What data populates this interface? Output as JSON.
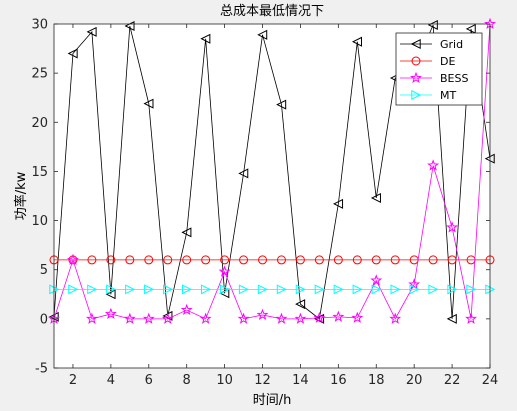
{
  "chart_data": {
    "type": "line",
    "title": "总成本最低情况下",
    "xlabel": "时间/h",
    "ylabel": "功率/kw",
    "xlim": [
      1,
      24
    ],
    "ylim": [
      -5,
      30
    ],
    "xticks": [
      2,
      4,
      6,
      8,
      10,
      12,
      14,
      16,
      18,
      20,
      22,
      24
    ],
    "yticks": [
      -5,
      0,
      5,
      10,
      15,
      20,
      25,
      30
    ],
    "grid": false,
    "legend_position": "top-right",
    "x": [
      1,
      2,
      3,
      4,
      5,
      6,
      7,
      8,
      9,
      10,
      11,
      12,
      13,
      14,
      15,
      16,
      17,
      18,
      19,
      20,
      21,
      22,
      23,
      24
    ],
    "series": [
      {
        "name": "Grid",
        "color": "#000000",
        "marker": "triangle-left",
        "values": [
          0.2,
          27.0,
          29.2,
          2.5,
          29.8,
          21.9,
          0.3,
          8.8,
          28.5,
          2.6,
          14.8,
          28.9,
          21.8,
          1.5,
          0.0,
          11.7,
          28.2,
          12.3,
          24.5,
          25.5,
          29.9,
          0.0,
          29.5,
          16.3
        ]
      },
      {
        "name": "DE",
        "color": "#ff0000",
        "marker": "circle",
        "values": [
          6,
          6,
          6,
          6,
          6,
          6,
          6,
          6,
          6,
          6,
          6,
          6,
          6,
          6,
          6,
          6,
          6,
          6,
          6,
          6,
          6,
          6,
          6,
          6
        ]
      },
      {
        "name": "BESS",
        "color": "#ff00ff",
        "marker": "star",
        "values": [
          0.0,
          6.0,
          0.0,
          0.5,
          0.0,
          0.0,
          0.0,
          0.9,
          0.0,
          4.8,
          0.0,
          0.4,
          0.0,
          0.0,
          0.1,
          0.2,
          0.1,
          3.9,
          0.0,
          3.5,
          15.6,
          9.3,
          0.0,
          30.0
        ]
      },
      {
        "name": "MT",
        "color": "#00ffff",
        "marker": "triangle-right",
        "values": [
          3,
          3,
          3,
          3,
          3,
          3,
          3,
          3,
          3,
          3,
          3,
          3,
          3,
          3,
          3,
          3,
          3,
          3,
          3,
          3,
          3,
          3,
          3,
          3
        ]
      }
    ]
  }
}
